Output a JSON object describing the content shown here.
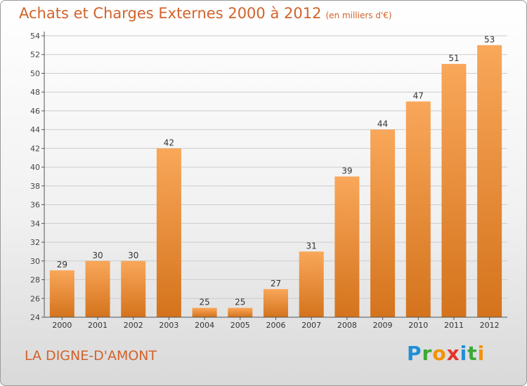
{
  "header": {
    "title": "Achats et Charges Externes 2000 à 2012",
    "unit": "(en milliers d'€)"
  },
  "footer": {
    "commune": "LA DIGNE-D'AMONT",
    "logo_text": "Proxiti",
    "logo_letters": [
      {
        "char": "P",
        "color": "#1f8fd8"
      },
      {
        "char": "r",
        "color": "#3aaa35"
      },
      {
        "char": "o",
        "color": "#f39200"
      },
      {
        "char": "x",
        "color": "#e6332a"
      },
      {
        "char": "i",
        "color": "#1f8fd8"
      },
      {
        "char": "t",
        "color": "#3aaa35"
      },
      {
        "char": "i",
        "color": "#f39200"
      }
    ]
  },
  "colors": {
    "title": "#d2622a",
    "bar_top": "#f9a75a",
    "bar_bottom": "#d4731c",
    "axis": "#555555",
    "grid": "#cccccc"
  },
  "chart_data": {
    "type": "bar",
    "title": "Achats et Charges Externes 2000 à 2012",
    "subtitle": "(en milliers d'€)",
    "categories": [
      "2000",
      "2001",
      "2002",
      "2003",
      "2004",
      "2005",
      "2006",
      "2007",
      "2008",
      "2009",
      "2010",
      "2011",
      "2012"
    ],
    "values": [
      29,
      30,
      30,
      42,
      25,
      25,
      27,
      31,
      39,
      44,
      47,
      51,
      53
    ],
    "ylim": [
      24,
      54
    ],
    "yticks": [
      24,
      26,
      28,
      30,
      32,
      34,
      36,
      38,
      40,
      42,
      44,
      46,
      48,
      50,
      52,
      54
    ],
    "grid": true,
    "legend": "none"
  }
}
